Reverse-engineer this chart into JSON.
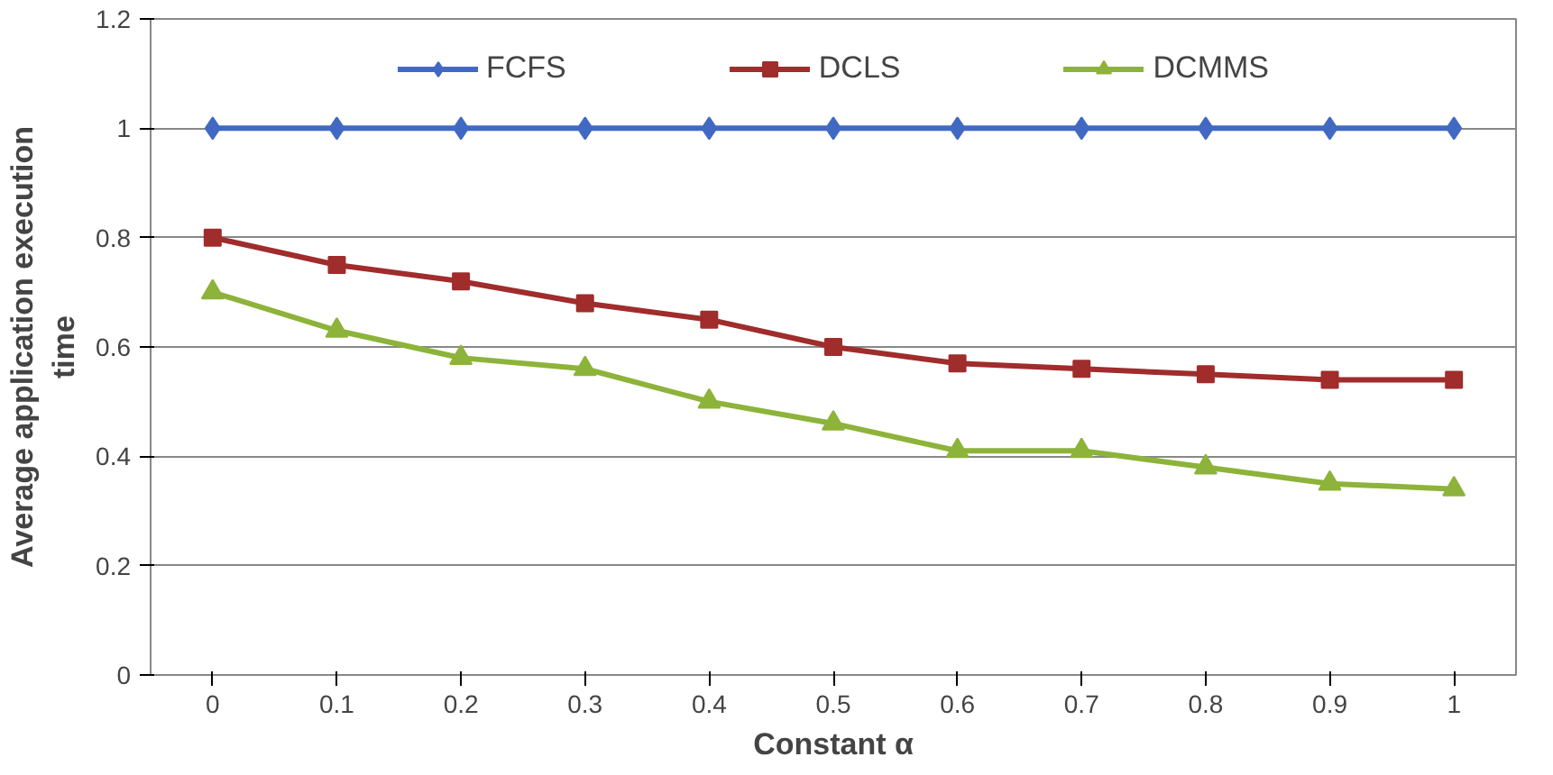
{
  "chart_data": {
    "type": "line",
    "xlabel": "Constant α",
    "ylabel": "Average application execution time",
    "categories": [
      "0",
      "0.1",
      "0.2",
      "0.3",
      "0.4",
      "0.5",
      "0.6",
      "0.7",
      "0.8",
      "0.9",
      "1"
    ],
    "series": [
      {
        "name": "FCFS",
        "color": "#4169c4",
        "marker": "diamond",
        "values": [
          1,
          1,
          1,
          1,
          1,
          1,
          1,
          1,
          1,
          1,
          1
        ]
      },
      {
        "name": "DCLS",
        "color": "#a02c2c",
        "marker": "square",
        "values": [
          0.8,
          0.75,
          0.72,
          0.68,
          0.65,
          0.6,
          0.57,
          0.56,
          0.55,
          0.54,
          0.54
        ]
      },
      {
        "name": "DCMMS",
        "color": "#8db33a",
        "marker": "triangle",
        "values": [
          0.7,
          0.63,
          0.58,
          0.56,
          0.5,
          0.46,
          0.41,
          0.41,
          0.38,
          0.35,
          0.34
        ]
      }
    ],
    "ylim": [
      0,
      1.2
    ],
    "yticks": [
      0,
      0.2,
      0.4,
      0.6,
      0.8,
      1,
      1.2
    ],
    "grid": "y",
    "legend": "top",
    "line_style": "solid"
  }
}
